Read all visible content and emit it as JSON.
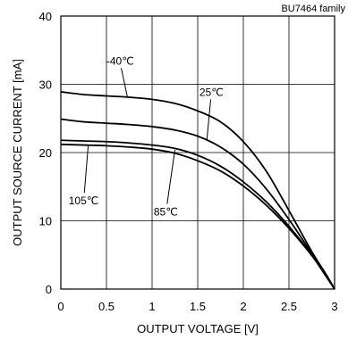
{
  "chart_data": {
    "type": "line",
    "title": "BU7464 family",
    "xlabel": "OUTPUT VOLTAGE [V]",
    "ylabel": "OUTPUT SOURCE CURRENT [mA]",
    "xlim": [
      0,
      3
    ],
    "ylim": [
      0,
      40
    ],
    "xticks": [
      0,
      0.5,
      1,
      1.5,
      2,
      2.5,
      3
    ],
    "yticks": [
      0,
      10,
      20,
      30,
      40
    ],
    "x_tick_labels": [
      "0",
      "0.5",
      "1",
      "1.5",
      "2",
      "2.5",
      "3"
    ],
    "y_tick_labels": [
      "0",
      "10",
      "20",
      "30",
      "40"
    ],
    "grid": true,
    "line_color": "#000000",
    "series": [
      {
        "name": "-40℃",
        "x": [
          0,
          0.25,
          0.5,
          0.75,
          1.0,
          1.25,
          1.5,
          1.75,
          2.0,
          2.25,
          2.5,
          2.75,
          2.9,
          3.0
        ],
        "y": [
          28.9,
          28.5,
          28.3,
          28.1,
          27.8,
          27.2,
          26.1,
          24.5,
          21.6,
          17.3,
          11.5,
          5.5,
          2.3,
          0.0
        ]
      },
      {
        "name": "25℃",
        "x": [
          0,
          0.25,
          0.5,
          0.75,
          1.0,
          1.25,
          1.5,
          1.75,
          2.0,
          2.25,
          2.5,
          2.75,
          2.9,
          3.0
        ],
        "y": [
          24.9,
          24.5,
          24.3,
          24.1,
          23.8,
          23.3,
          22.4,
          20.8,
          18.3,
          14.7,
          10.2,
          5.2,
          2.2,
          0.0
        ]
      },
      {
        "name": "85℃",
        "x": [
          0,
          0.25,
          0.5,
          0.75,
          1.0,
          1.25,
          1.5,
          1.75,
          2.0,
          2.25,
          2.5,
          2.75,
          2.9,
          3.0
        ],
        "y": [
          21.8,
          21.7,
          21.6,
          21.4,
          21.1,
          20.6,
          19.6,
          18.0,
          15.7,
          12.8,
          9.2,
          5.0,
          2.1,
          0.0
        ]
      },
      {
        "name": "105℃",
        "x": [
          0,
          0.25,
          0.5,
          0.75,
          1.0,
          1.25,
          1.5,
          1.75,
          2.0,
          2.25,
          2.5,
          2.75,
          2.9,
          3.0
        ],
        "y": [
          21.2,
          21.1,
          21.0,
          20.8,
          20.5,
          19.9,
          18.8,
          17.3,
          15.1,
          12.3,
          8.9,
          4.9,
          2.0,
          0.0
        ]
      }
    ],
    "annotations": [
      {
        "text": "-40℃",
        "series": "-40℃",
        "label_x": 0.65,
        "label_y": 32.9,
        "point_x": 0.73,
        "point_y": 28.1
      },
      {
        "text": "25℃",
        "series": "25℃",
        "label_x": 1.65,
        "label_y": 28.3,
        "point_x": 1.6,
        "point_y": 21.8
      },
      {
        "text": "85℃",
        "series": "85℃",
        "label_x": 1.15,
        "label_y": 10.8,
        "point_x": 1.25,
        "point_y": 20.4
      },
      {
        "text": "105℃",
        "series": "105℃",
        "label_x": 0.25,
        "label_y": 12.4,
        "point_x": 0.3,
        "point_y": 21.0
      }
    ]
  }
}
